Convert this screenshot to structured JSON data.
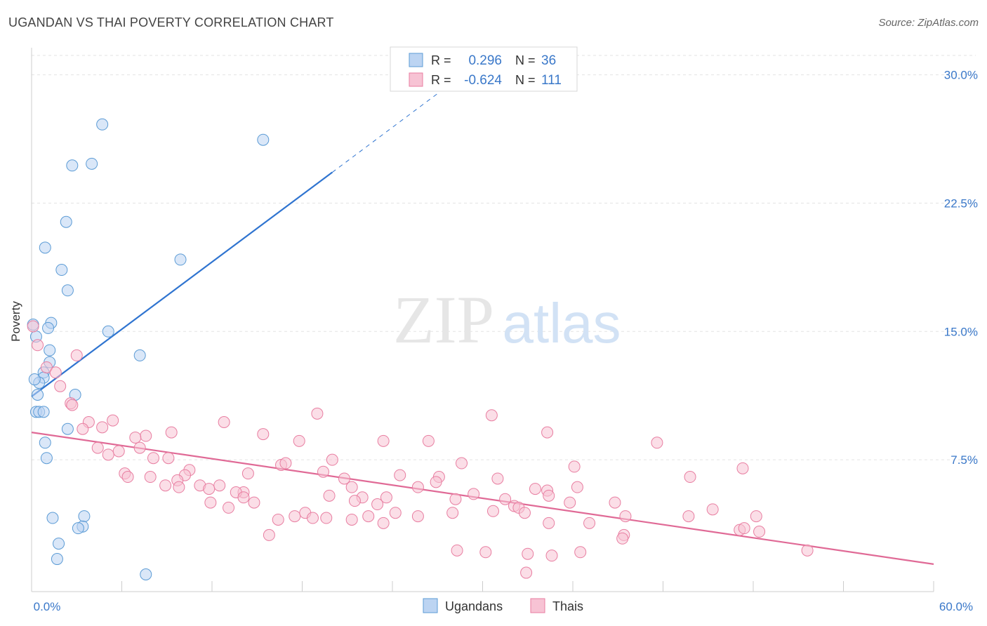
{
  "title": "UGANDAN VS THAI POVERTY CORRELATION CHART",
  "source": "Source: ZipAtlas.com",
  "watermark": {
    "zip": "ZIP",
    "atlas": "atlas"
  },
  "colors": {
    "blue": "#5b9bd5",
    "blue_fill": "#bcd4f2",
    "blue_line": "#2f74d0",
    "pink": "#e87ea1",
    "pink_fill": "#f7c3d4",
    "pink_line": "#e06a96",
    "tick_label": "#3a78c9"
  },
  "legend_top": [
    {
      "swatch": "blue",
      "r_label": "R =",
      "r_value": "0.296",
      "n_label": "N =",
      "n_value": "36"
    },
    {
      "swatch": "pink",
      "r_label": "R =",
      "r_value": "-0.624",
      "n_label": "N =",
      "n_value": "111"
    }
  ],
  "legend_bottom": [
    {
      "swatch": "blue",
      "label": "Ugandans"
    },
    {
      "swatch": "pink",
      "label": "Thais"
    }
  ],
  "chart_data": {
    "type": "scatter",
    "xlabel": "",
    "ylabel": "Poverty",
    "xlim": [
      0,
      60
    ],
    "ylim": [
      0,
      31.5
    ],
    "x_tick_labels": [
      {
        "value": 0,
        "label": "0.0%"
      },
      {
        "value": 60,
        "label": "60.0%"
      }
    ],
    "y_tick_labels": [
      {
        "value": 7.5,
        "label": "7.5%"
      },
      {
        "value": 15,
        "label": "15.0%"
      },
      {
        "value": 22.5,
        "label": "22.5%"
      },
      {
        "value": 30,
        "label": "30.0%"
      }
    ],
    "grid": true,
    "legend_position": "top-center",
    "series": [
      {
        "name": "Ugandans",
        "color": "blue",
        "points": [
          [
            4.7,
            27.1
          ],
          [
            15.4,
            26.2
          ],
          [
            2.7,
            24.7
          ],
          [
            4.0,
            24.8
          ],
          [
            2.3,
            21.4
          ],
          [
            0.9,
            19.9
          ],
          [
            2.0,
            18.6
          ],
          [
            9.9,
            19.2
          ],
          [
            2.4,
            17.4
          ],
          [
            0.1,
            15.4
          ],
          [
            1.3,
            15.5
          ],
          [
            1.1,
            15.2
          ],
          [
            5.1,
            15.0
          ],
          [
            0.3,
            14.7
          ],
          [
            1.2,
            13.9
          ],
          [
            7.2,
            13.6
          ],
          [
            1.2,
            13.2
          ],
          [
            0.8,
            12.6
          ],
          [
            0.8,
            12.3
          ],
          [
            0.5,
            12.0
          ],
          [
            0.2,
            12.2
          ],
          [
            0.4,
            11.3
          ],
          [
            2.9,
            11.3
          ],
          [
            0.3,
            10.3
          ],
          [
            0.5,
            10.3
          ],
          [
            0.8,
            10.3
          ],
          [
            2.4,
            9.3
          ],
          [
            0.9,
            8.5
          ],
          [
            1.0,
            7.6
          ],
          [
            1.4,
            4.1
          ],
          [
            3.5,
            4.2
          ],
          [
            3.4,
            3.6
          ],
          [
            3.1,
            3.5
          ],
          [
            1.8,
            2.6
          ],
          [
            1.7,
            1.7
          ],
          [
            7.6,
            0.8
          ]
        ],
        "trend": {
          "x": [
            0,
            20
          ],
          "y": [
            11.2,
            24.3
          ],
          "dashed_to": {
            "x": [
              20,
              27
            ],
            "y": [
              24.3,
              28.9
            ]
          }
        }
      },
      {
        "name": "Thais",
        "color": "pink",
        "points": [
          [
            0.1,
            15.3
          ],
          [
            0.4,
            14.2
          ],
          [
            3.0,
            13.6
          ],
          [
            1.0,
            12.9
          ],
          [
            1.6,
            12.6
          ],
          [
            1.9,
            11.8
          ],
          [
            2.6,
            10.8
          ],
          [
            2.7,
            10.7
          ],
          [
            19.0,
            10.2
          ],
          [
            30.6,
            10.1
          ],
          [
            3.8,
            9.7
          ],
          [
            5.4,
            9.8
          ],
          [
            12.8,
            9.7
          ],
          [
            3.4,
            9.3
          ],
          [
            4.7,
            9.4
          ],
          [
            9.3,
            9.1
          ],
          [
            15.4,
            9.0
          ],
          [
            7.6,
            8.9
          ],
          [
            6.9,
            8.8
          ],
          [
            34.3,
            9.1
          ],
          [
            23.4,
            8.6
          ],
          [
            26.4,
            8.6
          ],
          [
            17.8,
            8.6
          ],
          [
            41.6,
            8.5
          ],
          [
            4.4,
            8.2
          ],
          [
            5.8,
            8.0
          ],
          [
            7.2,
            8.2
          ],
          [
            5.1,
            7.8
          ],
          [
            8.1,
            7.6
          ],
          [
            9.1,
            7.6
          ],
          [
            16.6,
            7.2
          ],
          [
            16.9,
            7.3
          ],
          [
            20.0,
            7.5
          ],
          [
            28.6,
            7.3
          ],
          [
            36.1,
            7.1
          ],
          [
            47.3,
            7.0
          ],
          [
            10.5,
            6.9
          ],
          [
            6.2,
            6.7
          ],
          [
            10.2,
            6.6
          ],
          [
            14.4,
            6.7
          ],
          [
            19.4,
            6.8
          ],
          [
            6.4,
            6.5
          ],
          [
            7.9,
            6.5
          ],
          [
            9.7,
            6.3
          ],
          [
            20.8,
            6.4
          ],
          [
            24.5,
            6.6
          ],
          [
            27.1,
            6.5
          ],
          [
            31.0,
            6.4
          ],
          [
            43.8,
            6.5
          ],
          [
            8.9,
            6.0
          ],
          [
            11.2,
            6.0
          ],
          [
            12.5,
            6.0
          ],
          [
            9.8,
            5.9
          ],
          [
            11.8,
            5.8
          ],
          [
            14.1,
            5.6
          ],
          [
            21.3,
            5.9
          ],
          [
            25.7,
            5.9
          ],
          [
            26.9,
            6.2
          ],
          [
            33.5,
            5.8
          ],
          [
            36.3,
            5.9
          ],
          [
            13.6,
            5.6
          ],
          [
            14.1,
            5.3
          ],
          [
            19.8,
            5.4
          ],
          [
            23.6,
            5.3
          ],
          [
            22.0,
            5.3
          ],
          [
            29.4,
            5.5
          ],
          [
            31.5,
            5.2
          ],
          [
            34.3,
            5.7
          ],
          [
            34.4,
            5.4
          ],
          [
            11.9,
            5.0
          ],
          [
            14.8,
            5.0
          ],
          [
            21.5,
            5.1
          ],
          [
            23.0,
            4.9
          ],
          [
            28.2,
            5.2
          ],
          [
            32.1,
            4.8
          ],
          [
            35.8,
            5.0
          ],
          [
            38.8,
            5.0
          ],
          [
            13.1,
            4.7
          ],
          [
            17.5,
            4.2
          ],
          [
            18.2,
            4.4
          ],
          [
            16.4,
            4.0
          ],
          [
            18.7,
            4.1
          ],
          [
            19.6,
            4.1
          ],
          [
            21.3,
            4.0
          ],
          [
            22.4,
            4.2
          ],
          [
            23.4,
            3.8
          ],
          [
            24.2,
            4.4
          ],
          [
            25.7,
            4.2
          ],
          [
            28.0,
            4.4
          ],
          [
            30.7,
            4.5
          ],
          [
            32.4,
            4.7
          ],
          [
            32.8,
            4.4
          ],
          [
            39.5,
            4.2
          ],
          [
            43.7,
            4.2
          ],
          [
            45.3,
            4.6
          ],
          [
            48.2,
            4.2
          ],
          [
            34.4,
            3.8
          ],
          [
            37.1,
            3.8
          ],
          [
            47.1,
            3.4
          ],
          [
            47.4,
            3.5
          ],
          [
            48.4,
            3.3
          ],
          [
            15.8,
            3.1
          ],
          [
            39.4,
            3.1
          ],
          [
            39.3,
            2.9
          ],
          [
            28.3,
            2.2
          ],
          [
            30.2,
            2.1
          ],
          [
            33.0,
            2.0
          ],
          [
            34.6,
            1.9
          ],
          [
            36.5,
            2.1
          ],
          [
            51.6,
            2.2
          ],
          [
            32.9,
            0.9
          ]
        ],
        "trend": {
          "x": [
            0,
            60
          ],
          "y": [
            9.1,
            1.4
          ]
        }
      }
    ]
  }
}
